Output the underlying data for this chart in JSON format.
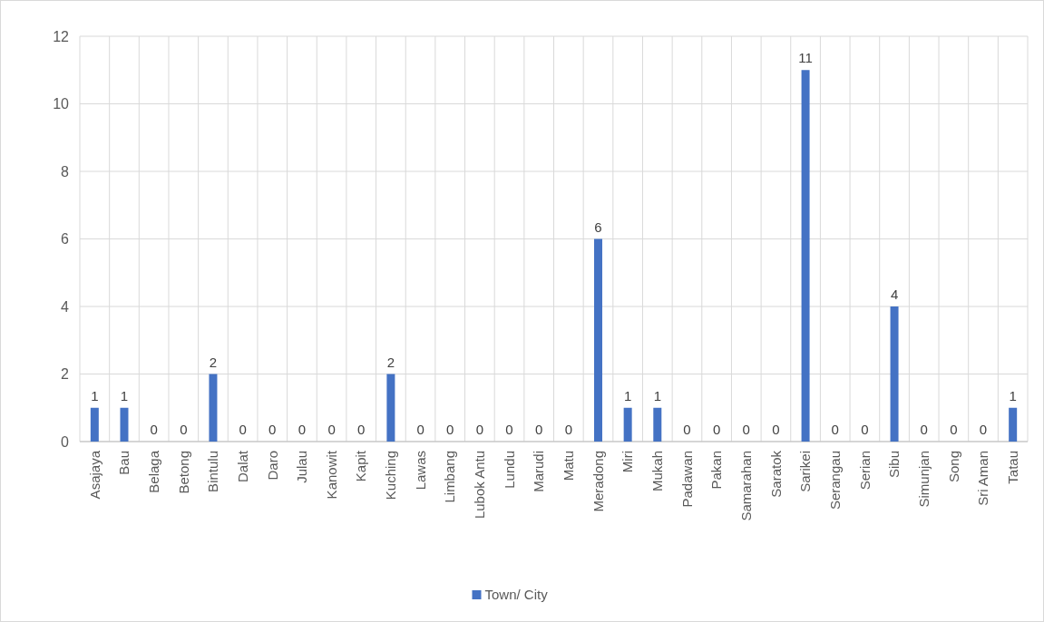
{
  "chart_data": {
    "type": "bar",
    "categories": [
      "Asajaya",
      "Bau",
      "Belaga",
      "Betong",
      "Bintulu",
      "Dalat",
      "Daro",
      "Julau",
      "Kanowit",
      "Kapit",
      "Kuching",
      "Lawas",
      "Limbang",
      "Lubok Antu",
      "Lundu",
      "Marudi",
      "Matu",
      "Meradong",
      "Miri",
      "Mukah",
      "Padawan",
      "Pakan",
      "Samarahan",
      "Saratok",
      "Sarikei",
      "Serangau",
      "Serian",
      "Sibu",
      "Simunjan",
      "Song",
      "Sri Aman",
      "Tatau"
    ],
    "series": [
      {
        "name": "Town/ City",
        "color": "#4472c4",
        "values": [
          1,
          1,
          0,
          0,
          2,
          0,
          0,
          0,
          0,
          0,
          2,
          0,
          0,
          0,
          0,
          0,
          0,
          6,
          1,
          1,
          0,
          0,
          0,
          0,
          11,
          0,
          0,
          4,
          0,
          0,
          0,
          1
        ]
      }
    ],
    "ylim": [
      0,
      12
    ],
    "yticks": [
      0,
      2,
      4,
      6,
      8,
      10,
      12
    ],
    "grid": true,
    "data_labels": true,
    "legend": "bottom"
  }
}
